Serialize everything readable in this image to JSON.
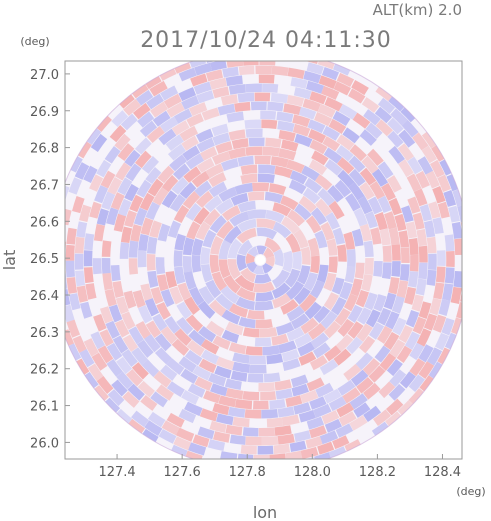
{
  "header": {
    "altitude": "ALT(km) 2.0",
    "datetime": "2017/10/24 04:11:30"
  },
  "axes": {
    "y_unit": "(deg)",
    "x_unit": "(deg)",
    "x_title": "lon",
    "y_title": "lat"
  },
  "chart_data": {
    "type": "heatmap",
    "description_kind": "radar-ppi-diverging",
    "x_ticks": [
      "127.4",
      "127.6",
      "127.8",
      "128.0",
      "128.2",
      "128.4"
    ],
    "y_ticks": [
      "26.0",
      "26.1",
      "26.2",
      "26.3",
      "26.4",
      "26.5",
      "26.6",
      "26.7",
      "26.8",
      "26.9",
      "27.0"
    ],
    "xlim": [
      127.24,
      128.46
    ],
    "ylim": [
      25.955,
      27.035
    ],
    "center": [
      127.84,
      26.495
    ],
    "colors": {
      "positive": "#f4a0a0",
      "negative": "#a8a8f0",
      "neutral": "#ffffff"
    }
  }
}
